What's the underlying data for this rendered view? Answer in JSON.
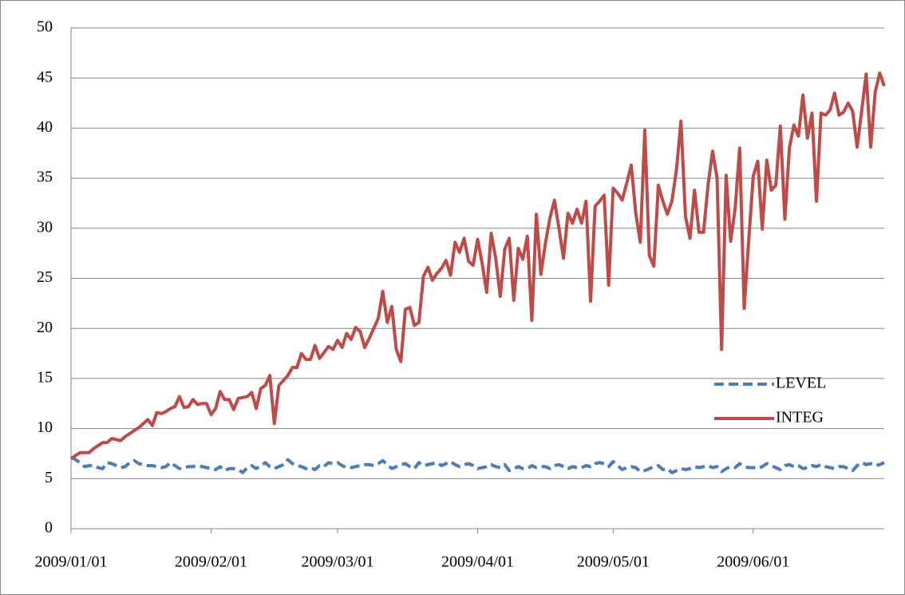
{
  "chart_data": {
    "type": "line",
    "x": [
      "2009/01/01",
      "2009/01/02",
      "2009/01/03",
      "2009/01/04",
      "2009/01/05",
      "2009/01/06",
      "2009/01/07",
      "2009/01/08",
      "2009/01/09",
      "2009/01/10",
      "2009/01/11",
      "2009/01/12",
      "2009/01/13",
      "2009/01/14",
      "2009/01/15",
      "2009/01/16",
      "2009/01/17",
      "2009/01/18",
      "2009/01/19",
      "2009/01/20",
      "2009/01/21",
      "2009/01/22",
      "2009/01/23",
      "2009/01/24",
      "2009/01/25",
      "2009/01/26",
      "2009/01/27",
      "2009/01/28",
      "2009/01/29",
      "2009/01/30",
      "2009/01/31",
      "2009/02/01",
      "2009/02/02",
      "2009/02/03",
      "2009/02/04",
      "2009/02/05",
      "2009/02/06",
      "2009/02/07",
      "2009/02/08",
      "2009/02/09",
      "2009/02/10",
      "2009/02/11",
      "2009/02/12",
      "2009/02/13",
      "2009/02/14",
      "2009/02/15",
      "2009/02/16",
      "2009/02/17",
      "2009/02/18",
      "2009/02/19",
      "2009/02/20",
      "2009/02/21",
      "2009/02/22",
      "2009/02/23",
      "2009/02/24",
      "2009/02/25",
      "2009/02/26",
      "2009/02/27",
      "2009/02/28",
      "2009/03/01",
      "2009/03/02",
      "2009/03/03",
      "2009/03/04",
      "2009/03/05",
      "2009/03/06",
      "2009/03/07",
      "2009/03/08",
      "2009/03/09",
      "2009/03/10",
      "2009/03/11",
      "2009/03/12",
      "2009/03/13",
      "2009/03/14",
      "2009/03/15",
      "2009/03/16",
      "2009/03/17",
      "2009/03/18",
      "2009/03/19",
      "2009/03/20",
      "2009/03/21",
      "2009/03/22",
      "2009/03/23",
      "2009/03/24",
      "2009/03/25",
      "2009/03/26",
      "2009/03/27",
      "2009/03/28",
      "2009/03/29",
      "2009/03/30",
      "2009/03/31",
      "2009/04/01",
      "2009/04/02",
      "2009/04/03",
      "2009/04/04",
      "2009/04/05",
      "2009/04/06",
      "2009/04/07",
      "2009/04/08",
      "2009/04/09",
      "2009/04/10",
      "2009/04/11",
      "2009/04/12",
      "2009/04/13",
      "2009/04/14",
      "2009/04/15",
      "2009/04/16",
      "2009/04/17",
      "2009/04/18",
      "2009/04/19",
      "2009/04/20",
      "2009/04/21",
      "2009/04/22",
      "2009/04/23",
      "2009/04/24",
      "2009/04/25",
      "2009/04/26",
      "2009/04/27",
      "2009/04/28",
      "2009/04/29",
      "2009/04/30",
      "2009/05/01",
      "2009/05/02",
      "2009/05/03",
      "2009/05/04",
      "2009/05/05",
      "2009/05/06",
      "2009/05/07",
      "2009/05/08",
      "2009/05/09",
      "2009/05/10",
      "2009/05/11",
      "2009/05/12",
      "2009/05/13",
      "2009/05/14",
      "2009/05/15",
      "2009/05/16",
      "2009/05/17",
      "2009/05/18",
      "2009/05/19",
      "2009/05/20",
      "2009/05/21",
      "2009/05/22",
      "2009/05/23",
      "2009/05/24",
      "2009/05/25",
      "2009/05/26",
      "2009/05/27",
      "2009/05/28",
      "2009/05/29",
      "2009/05/30",
      "2009/05/31",
      "2009/06/01",
      "2009/06/02",
      "2009/06/03",
      "2009/06/04",
      "2009/06/05",
      "2009/06/06",
      "2009/06/07",
      "2009/06/08",
      "2009/06/09",
      "2009/06/10",
      "2009/06/11",
      "2009/06/12",
      "2009/06/13",
      "2009/06/14",
      "2009/06/15",
      "2009/06/16",
      "2009/06/17",
      "2009/06/18",
      "2009/06/19",
      "2009/06/20",
      "2009/06/21",
      "2009/06/22",
      "2009/06/23",
      "2009/06/24",
      "2009/06/25",
      "2009/06/26",
      "2009/06/27",
      "2009/06/28",
      "2009/06/29",
      "2009/06/30"
    ],
    "series": [
      {
        "name": "LEVEL",
        "color": "#4a7ebb",
        "style": "dashed",
        "values": [
          7.1,
          6.9,
          6.6,
          6.2,
          6.3,
          6.3,
          6.1,
          6.0,
          6.6,
          6.5,
          6.3,
          6.1,
          6.2,
          6.6,
          6.8,
          6.5,
          6.4,
          6.3,
          6.3,
          6.2,
          6.1,
          6.2,
          6.6,
          6.3,
          6.0,
          6.1,
          6.2,
          6.2,
          6.3,
          6.2,
          6.1,
          6.0,
          5.9,
          6.2,
          5.8,
          6.0,
          6.0,
          5.9,
          5.6,
          6.1,
          6.3,
          6.0,
          6.3,
          6.6,
          6.2,
          6.0,
          6.2,
          6.4,
          6.9,
          6.5,
          6.3,
          6.2,
          6.0,
          6.1,
          5.9,
          6.3,
          6.2,
          6.6,
          6.5,
          6.6,
          6.3,
          6.1,
          6.1,
          6.2,
          6.3,
          6.4,
          6.4,
          6.3,
          6.5,
          6.8,
          6.4,
          6.0,
          6.2,
          6.4,
          6.5,
          6.2,
          6.0,
          6.6,
          6.3,
          6.4,
          6.5,
          6.6,
          6.3,
          6.5,
          6.7,
          6.4,
          6.2,
          6.4,
          6.5,
          6.3,
          6.0,
          6.1,
          6.2,
          6.4,
          6.2,
          6.1,
          6.4,
          5.8,
          6.0,
          6.2,
          6.0,
          6.0,
          6.3,
          6.1,
          6.2,
          6.2,
          6.0,
          6.3,
          6.4,
          6.2,
          6.0,
          6.2,
          6.1,
          6.1,
          6.3,
          6.2,
          6.5,
          6.6,
          6.5,
          6.2,
          6.7,
          6.3,
          5.9,
          6.1,
          6.2,
          6.1,
          5.7,
          5.8,
          6.0,
          6.2,
          6.3,
          5.9,
          6.0,
          5.6,
          5.8,
          6.0,
          5.9,
          6.0,
          6.2,
          6.1,
          6.2,
          6.3,
          6.1,
          6.2,
          5.7,
          6.0,
          6.2,
          6.1,
          6.5,
          6.2,
          6.1,
          6.1,
          6.0,
          6.2,
          6.5,
          6.3,
          6.1,
          5.9,
          6.3,
          6.4,
          6.2,
          6.3,
          6.0,
          6.1,
          6.3,
          6.2,
          6.4,
          6.2,
          6.1,
          6.0,
          6.2,
          6.2,
          6.0,
          5.8,
          6.3,
          6.6,
          6.4,
          6.5,
          6.3,
          6.4,
          6.6
        ]
      },
      {
        "name": "INTEG",
        "color": "#be4b48",
        "style": "solid",
        "values": [
          7.0,
          7.3,
          7.6,
          7.6,
          7.6,
          8.0,
          8.3,
          8.6,
          8.6,
          9.0,
          8.9,
          8.8,
          9.2,
          9.5,
          9.8,
          10.1,
          10.5,
          10.9,
          10.3,
          11.6,
          11.5,
          11.7,
          12.0,
          12.2,
          13.2,
          12.1,
          12.2,
          12.9,
          12.4,
          12.5,
          12.5,
          11.4,
          12.0,
          13.7,
          12.9,
          12.9,
          11.9,
          13.0,
          13.1,
          13.2,
          13.6,
          12.0,
          14.0,
          14.3,
          15.3,
          10.5,
          14.3,
          14.8,
          15.3,
          16.1,
          16.1,
          17.5,
          16.9,
          16.9,
          18.3,
          17.0,
          17.6,
          18.2,
          17.9,
          18.8,
          18.1,
          19.5,
          18.9,
          20.1,
          19.7,
          18.1,
          19.0,
          20.0,
          21.0,
          23.7,
          20.6,
          22.2,
          17.9,
          16.7,
          21.9,
          22.1,
          20.3,
          20.6,
          25.2,
          26.1,
          24.8,
          25.5,
          26.0,
          26.8,
          25.3,
          28.6,
          27.6,
          29.0,
          26.7,
          26.3,
          28.9,
          26.5,
          23.6,
          29.5,
          27.0,
          23.2,
          27.9,
          29.0,
          22.8,
          28.0,
          26.9,
          29.2,
          20.8,
          31.4,
          25.4,
          28.5,
          31.0,
          32.8,
          30.0,
          27.0,
          31.5,
          30.5,
          31.9,
          30.5,
          32.7,
          22.7,
          32.2,
          32.7,
          33.3,
          24.3,
          34.0,
          33.5,
          32.8,
          34.5,
          36.3,
          31.5,
          28.6,
          39.8,
          27.3,
          26.2,
          34.3,
          32.7,
          31.4,
          32.7,
          35.8,
          40.7,
          31.2,
          29.0,
          33.8,
          29.6,
          29.6,
          34.3,
          37.7,
          35.0,
          17.9,
          35.3,
          28.7,
          32.0,
          38.0,
          22.0,
          28.8,
          35.2,
          36.7,
          29.9,
          36.8,
          33.8,
          34.3,
          40.2,
          30.9,
          38.0,
          40.3,
          39.2,
          43.3,
          39.0,
          41.5,
          32.7,
          41.5,
          41.3,
          41.8,
          43.5,
          41.3,
          41.6,
          42.5,
          41.7,
          38.1,
          41.7,
          45.4,
          38.1,
          43.6,
          45.5,
          44.2
        ]
      }
    ],
    "xlim": [
      "2009/01/01",
      "2009/06/30"
    ],
    "xticks": [
      "2009/01/01",
      "2009/02/01",
      "2009/03/01",
      "2009/04/01",
      "2009/05/01",
      "2009/06/01"
    ],
    "ylim": [
      0,
      50
    ],
    "yticks": [
      0,
      5,
      10,
      15,
      20,
      25,
      30,
      35,
      40,
      45,
      50
    ],
    "grid": true,
    "legend": "right"
  }
}
